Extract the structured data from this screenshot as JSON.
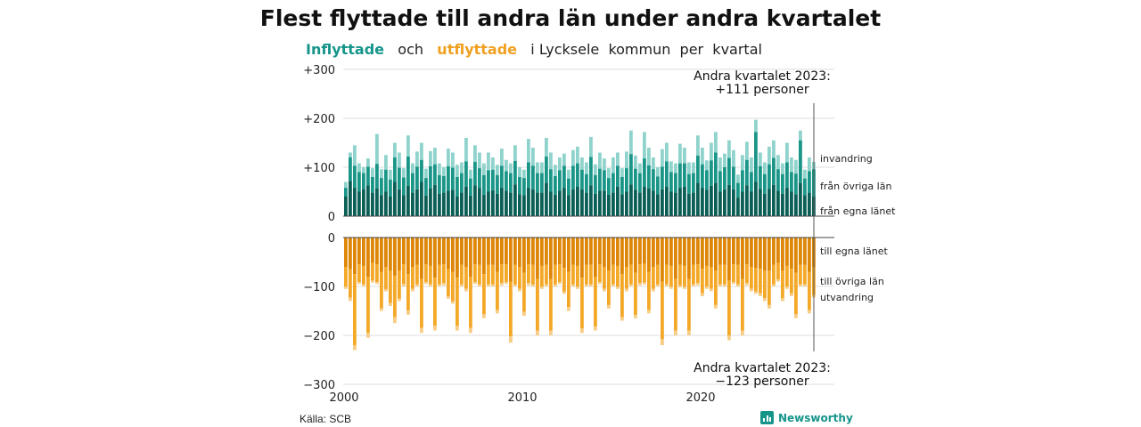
{
  "title": "Flest flyttade till andra län under andra kvartalet",
  "subtitle": {
    "part1": "Inflyttade",
    "part2": "och",
    "part3": "utflyttade",
    "part4": "i Lycksele  kommun  per  kvartal"
  },
  "source": "Källa: SCB",
  "brand": "Newsworthy",
  "colors": {
    "in_light": "#8fd3cc",
    "in_mid": "#1a9688",
    "in_dark": "#0b5f56",
    "out_dark": "#de8608",
    "out_mid": "#f4a827",
    "out_light": "#f7cd86",
    "axis": "#555555",
    "grid": "#dddddd"
  },
  "chart_data": {
    "type": "bar",
    "stacked": true,
    "x_start": 2000,
    "quarters_per_year": 4,
    "x_ticks": [
      "2000",
      "2010",
      "2020"
    ],
    "y_ticks_top": [
      "+300",
      "+200",
      "+100",
      "0"
    ],
    "y_ticks_bottom": [
      "0",
      "−100",
      "−200",
      "−300"
    ],
    "ylim_top": [
      0,
      300
    ],
    "ylim_bottom": [
      -300,
      0
    ],
    "grid": true,
    "series_labels_in": [
      "invandring",
      "från övriga län",
      "från egna länet"
    ],
    "series_labels_out": [
      "till egna länet",
      "till övriga län",
      "utvandring"
    ],
    "inflow_totals": [
      70,
      130,
      145,
      108,
      100,
      118,
      98,
      168,
      96,
      125,
      95,
      150,
      130,
      98,
      165,
      108,
      132,
      150,
      97,
      133,
      140,
      108,
      100,
      138,
      130,
      105,
      110,
      160,
      95,
      145,
      130,
      108,
      130,
      120,
      105,
      138,
      115,
      108,
      145,
      100,
      95,
      158,
      140,
      110,
      110,
      160,
      130,
      105,
      120,
      128,
      95,
      135,
      142,
      120,
      110,
      162,
      106,
      130,
      118,
      98,
      120,
      130,
      98,
      132,
      175,
      124,
      108,
      172,
      140,
      120,
      100,
      137,
      150,
      112,
      108,
      148,
      140,
      110,
      110,
      165,
      140,
      114,
      150,
      172,
      120,
      128,
      155,
      135,
      85,
      125,
      152,
      120,
      197,
      130,
      110,
      142,
      155,
      125,
      108,
      150,
      120,
      115,
      175,
      95,
      120,
      111
    ],
    "inflow_own": [
      40,
      72,
      58,
      50,
      55,
      63,
      48,
      57,
      43,
      50,
      40,
      70,
      55,
      43,
      62,
      48,
      55,
      70,
      42,
      57,
      64,
      46,
      48,
      52,
      54,
      40,
      48,
      60,
      42,
      63,
      58,
      44,
      50,
      53,
      46,
      58,
      52,
      48,
      65,
      45,
      43,
      58,
      55,
      48,
      48,
      68,
      50,
      44,
      52,
      58,
      43,
      55,
      60,
      55,
      48,
      63,
      46,
      52,
      52,
      44,
      48,
      60,
      45,
      50,
      65,
      54,
      48,
      60,
      57,
      52,
      45,
      55,
      60,
      50,
      48,
      58,
      60,
      46,
      48,
      68,
      58,
      54,
      62,
      68,
      50,
      55,
      64,
      55,
      38,
      50,
      63,
      50,
      70,
      56,
      46,
      56,
      64,
      52,
      46,
      58,
      50,
      45,
      68,
      43,
      48,
      40
    ],
    "inflow_other": [
      18,
      48,
      45,
      40,
      33,
      38,
      32,
      50,
      35,
      45,
      35,
      50,
      44,
      36,
      60,
      40,
      46,
      45,
      36,
      45,
      42,
      38,
      34,
      50,
      45,
      40,
      40,
      52,
      35,
      48,
      40,
      40,
      44,
      42,
      38,
      45,
      40,
      40,
      48,
      35,
      35,
      52,
      48,
      40,
      40,
      54,
      46,
      38,
      42,
      45,
      34,
      48,
      48,
      40,
      38,
      58,
      38,
      45,
      42,
      34,
      40,
      43,
      35,
      48,
      62,
      43,
      40,
      58,
      47,
      44,
      36,
      46,
      52,
      40,
      40,
      50,
      48,
      40,
      40,
      56,
      48,
      40,
      52,
      62,
      42,
      45,
      55,
      46,
      30,
      44,
      52,
      40,
      102,
      46,
      40,
      50,
      55,
      44,
      40,
      52,
      40,
      42,
      87,
      34,
      44,
      56
    ],
    "outflow_totals": [
      -105,
      -130,
      -230,
      -95,
      -100,
      -205,
      -92,
      -95,
      -150,
      -110,
      -140,
      -175,
      -130,
      -100,
      -158,
      -110,
      -100,
      -195,
      -95,
      -100,
      -190,
      -100,
      -98,
      -125,
      -135,
      -190,
      -100,
      -110,
      -195,
      -95,
      -100,
      -165,
      -100,
      -100,
      -155,
      -98,
      -95,
      -215,
      -100,
      -110,
      -160,
      -98,
      -100,
      -200,
      -105,
      -100,
      -200,
      -100,
      -95,
      -115,
      -150,
      -100,
      -105,
      -195,
      -100,
      -100,
      -190,
      -95,
      -110,
      -145,
      -100,
      -105,
      -170,
      -110,
      -100,
      -165,
      -98,
      -96,
      -155,
      -110,
      -100,
      -220,
      -100,
      -105,
      -200,
      -102,
      -105,
      -200,
      -100,
      -98,
      -120,
      -105,
      -110,
      -145,
      -100,
      -100,
      -210,
      -95,
      -100,
      -200,
      -98,
      -110,
      -115,
      -120,
      -130,
      -145,
      -100,
      -90,
      -130,
      -105,
      -120,
      -165,
      -100,
      -100,
      -155,
      -123
    ],
    "outflow_own": [
      -60,
      -65,
      -75,
      -55,
      -58,
      -80,
      -52,
      -55,
      -70,
      -60,
      -68,
      -78,
      -68,
      -55,
      -75,
      -60,
      -56,
      -85,
      -55,
      -58,
      -82,
      -56,
      -55,
      -65,
      -70,
      -82,
      -56,
      -60,
      -80,
      -55,
      -56,
      -75,
      -56,
      -56,
      -70,
      -55,
      -55,
      -90,
      -56,
      -60,
      -72,
      -55,
      -56,
      -85,
      -58,
      -56,
      -85,
      -56,
      -55,
      -62,
      -70,
      -56,
      -58,
      -82,
      -56,
      -56,
      -80,
      -55,
      -60,
      -68,
      -56,
      -58,
      -75,
      -60,
      -56,
      -72,
      -55,
      -54,
      -70,
      -60,
      -56,
      -90,
      -56,
      -58,
      -85,
      -56,
      -58,
      -85,
      -56,
      -55,
      -64,
      -58,
      -60,
      -68,
      -56,
      -56,
      -88,
      -55,
      -56,
      -85,
      -55,
      -60,
      -62,
      -64,
      -68,
      -68,
      -56,
      -52,
      -68,
      -58,
      -64,
      -72,
      -56,
      -56,
      -70,
      -60
    ],
    "outflow_other": [
      -40,
      -58,
      -145,
      -36,
      -38,
      -115,
      -36,
      -36,
      -75,
      -46,
      -66,
      -85,
      -57,
      -40,
      -74,
      -45,
      -40,
      -100,
      -36,
      -38,
      -98,
      -40,
      -38,
      -55,
      -60,
      -98,
      -40,
      -45,
      -105,
      -36,
      -40,
      -82,
      -40,
      -40,
      -78,
      -38,
      -36,
      -112,
      -40,
      -45,
      -80,
      -38,
      -40,
      -105,
      -42,
      -40,
      -105,
      -40,
      -36,
      -48,
      -72,
      -40,
      -42,
      -104,
      -40,
      -40,
      -102,
      -36,
      -45,
      -70,
      -40,
      -42,
      -88,
      -45,
      -40,
      -86,
      -38,
      -38,
      -78,
      -45,
      -40,
      -118,
      -40,
      -42,
      -105,
      -42,
      -42,
      -105,
      -40,
      -38,
      -50,
      -42,
      -45,
      -70,
      -40,
      -40,
      -112,
      -36,
      -40,
      -105,
      -38,
      -45,
      -48,
      -50,
      -56,
      -70,
      -40,
      -34,
      -56,
      -42,
      -50,
      -85,
      -40,
      -40,
      -78,
      -58
    ],
    "annotation_top": [
      "Andra kvartalet 2023:",
      "+111 personer"
    ],
    "annotation_bottom": [
      "Andra kvartalet 2023:",
      "−123 personer"
    ]
  }
}
